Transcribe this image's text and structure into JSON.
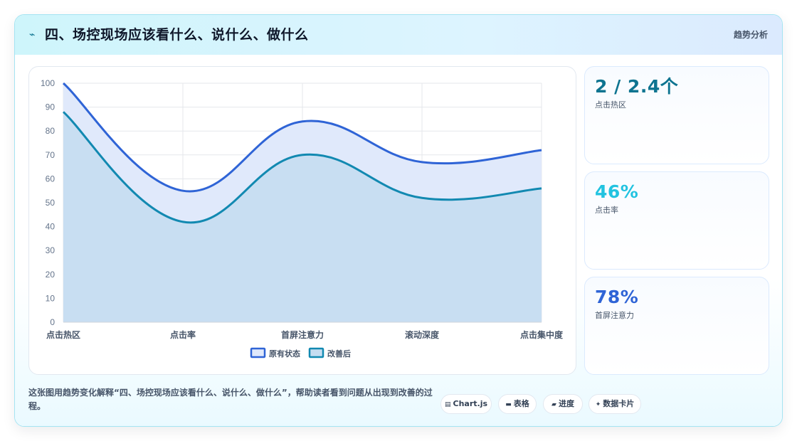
{
  "header": {
    "icon": "bolt-icon",
    "title": "四、场控现场应该看什么、说什么、做什么",
    "badge": "趋势分析"
  },
  "chart_data": {
    "type": "area",
    "categories": [
      "点击热区",
      "点击率",
      "首屏注意力",
      "滚动深度",
      "点击集中度"
    ],
    "series": [
      {
        "name": "原有状态",
        "values": [
          100,
          55,
          84,
          67,
          72
        ],
        "color": "#2f64d6",
        "fill": "#e0e9fb"
      },
      {
        "name": "改善后",
        "values": [
          88,
          42,
          70,
          52,
          56
        ],
        "color": "#1289b1",
        "fill": "#c5ddf1"
      }
    ],
    "ylim": [
      0,
      100
    ],
    "yticks": [
      0,
      10,
      20,
      30,
      40,
      50,
      60,
      70,
      80,
      90,
      100
    ],
    "grid": true,
    "legend_position": "bottom"
  },
  "stats": [
    {
      "value": "2 / 2.4个",
      "label": "点击热区",
      "color": "#0e7490"
    },
    {
      "value": "46%",
      "label": "点击率",
      "color": "#22c3e0"
    },
    {
      "value": "78%",
      "label": "首屏注意力",
      "color": "#2f64d6"
    }
  ],
  "footer": {
    "description": "这张图用趋势变化解释“四、场控现场应该看什么、说什么、做什么”，帮助读者看到问题从出现到改善的过程。",
    "tags": [
      {
        "icon": "chart-icon",
        "label": "Chart.js"
      },
      {
        "icon": "table-icon",
        "label": "表格"
      },
      {
        "icon": "progress-icon",
        "label": "进度"
      },
      {
        "icon": "sparkle-icon",
        "label": "数据卡片"
      }
    ]
  }
}
